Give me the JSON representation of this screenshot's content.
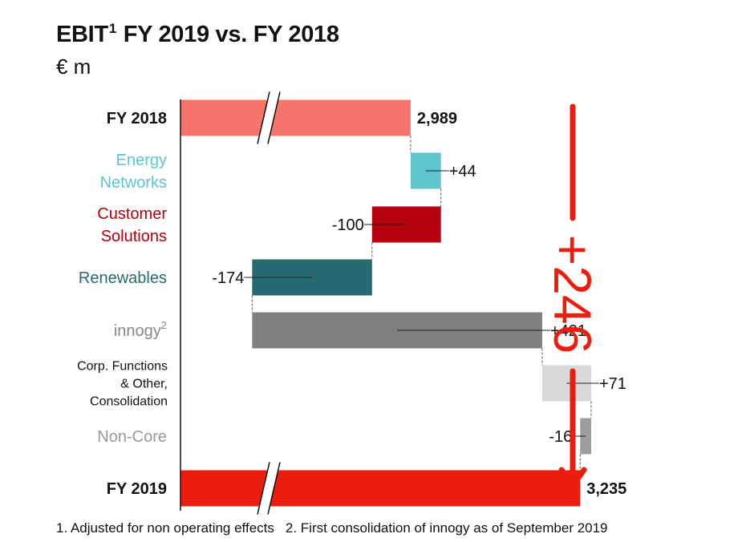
{
  "header": {
    "title": "EBIT",
    "title_sup": "1",
    "title_rest": " FY 2019 vs. FY 2018",
    "unit": "€ m"
  },
  "footnotes": [
    "1. Adjusted for non operating effects",
    "2. First consolidation of innogy as of September 2019"
  ],
  "chart_data": {
    "type": "waterfall",
    "title": "EBIT FY 2019 vs. FY 2018",
    "unit": "€ m",
    "axis_break": true,
    "items": [
      {
        "label": [
          "FY 2018"
        ],
        "sup": "",
        "value": 2989,
        "value_label": "2,989",
        "kind": "total",
        "color": "#f6756a",
        "label_color": "#111111"
      },
      {
        "label": [
          "Energy",
          "Networks"
        ],
        "sup": "",
        "value": 44,
        "value_label": "+44",
        "kind": "delta",
        "color": "#5ec4cd",
        "label_color": "#5ec4cd"
      },
      {
        "label": [
          "Customer",
          "Solutions"
        ],
        "sup": "",
        "value": -100,
        "value_label": "-100",
        "kind": "delta",
        "color": "#b5000e",
        "label_color": "#b5000e"
      },
      {
        "label": [
          "Renewables"
        ],
        "sup": "",
        "value": -174,
        "value_label": "-174",
        "kind": "delta",
        "color": "#256a70",
        "label_color": "#256a70"
      },
      {
        "label": [
          "innogy"
        ],
        "sup": "2",
        "value": 421,
        "value_label": "+421",
        "kind": "delta",
        "color": "#808080",
        "label_color": "#888888"
      },
      {
        "label": [
          "Corp. Functions",
          "& Other,",
          "Consolidation"
        ],
        "sup": "",
        "value": 71,
        "value_label": "+71",
        "kind": "delta",
        "color": "#d9d9d9",
        "label_color": "#111111"
      },
      {
        "label": [
          "Non-Core"
        ],
        "sup": "",
        "value": -16,
        "value_label": "-16",
        "kind": "delta",
        "color": "#9d9d9d",
        "label_color": "#999999"
      },
      {
        "label": [
          "FY 2019"
        ],
        "sup": "",
        "value": 3235,
        "value_label": "3,235",
        "kind": "total",
        "color": "#ea1d0e",
        "label_color": "#111111"
      }
    ],
    "total_change": {
      "label": "+246",
      "color": "#ea1d0e"
    }
  }
}
